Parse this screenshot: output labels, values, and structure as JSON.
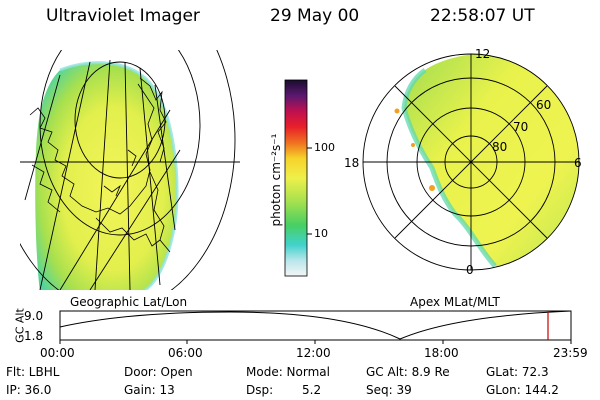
{
  "header": {
    "title": "Ultraviolet Imager",
    "date": "29 May 00",
    "time": "22:58:07 UT"
  },
  "colorbar": {
    "unit_label": "photon cm⁻²s⁻¹",
    "ticks": [
      "100",
      "10"
    ]
  },
  "left_panel": {
    "caption": "Geographic Lat/Lon"
  },
  "right_panel": {
    "caption": "Apex MLat/MLT",
    "mlt_labels": [
      "12",
      "18",
      "6",
      "0"
    ],
    "lat_labels": [
      "60",
      "70",
      "80"
    ]
  },
  "orbit_strip": {
    "ylabel": "GC Alt",
    "yticks": [
      "9.0",
      "1.8"
    ],
    "xticks": [
      "00:00",
      "06:00",
      "12:00",
      "18:00",
      "23:59"
    ]
  },
  "status": {
    "row1": {
      "filter": "Flt: LBHL",
      "door": "Door: Open",
      "mode": "Mode: Normal",
      "gc_alt": "GC Alt: 8.9 Re",
      "glat": "GLat: 72.3"
    },
    "row2": {
      "ip": "IP: 36.0",
      "gain": "Gain: 13",
      "dsp_label": "Dsp:",
      "dsp_value": "5.2",
      "seq": "Seq: 39",
      "glon": "GLon: 144.2"
    }
  },
  "colors": {
    "aurora_fill": "#e8f04a",
    "aurora_green": "#7ed957",
    "aurora_cyan": "#5fd6d0",
    "marker_red": "#cc0000"
  }
}
